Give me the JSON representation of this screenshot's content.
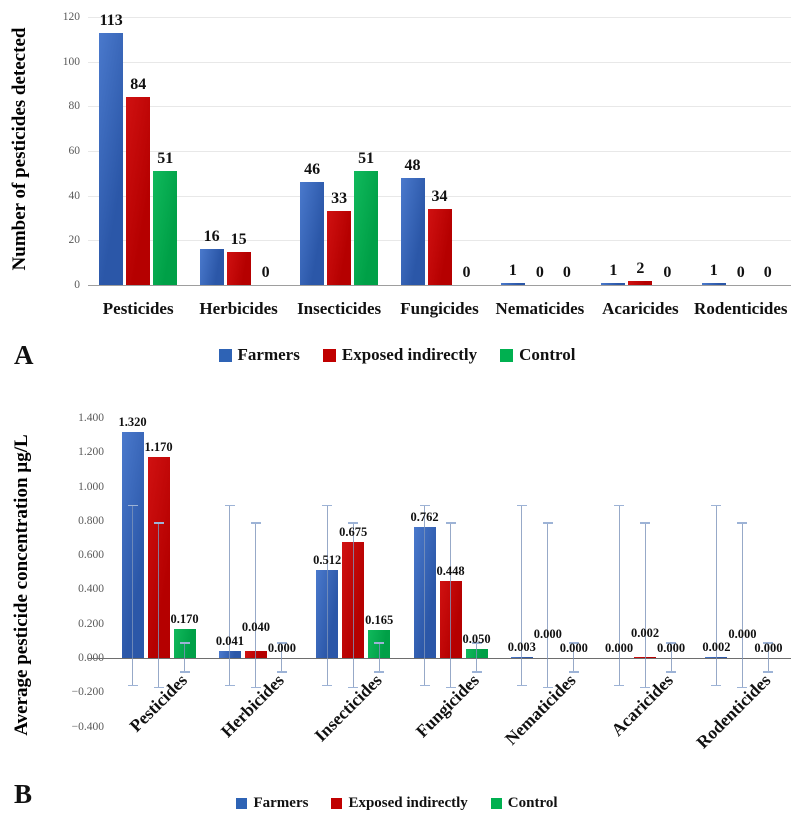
{
  "figure": {
    "panel_a_label": "A",
    "panel_b_label": "B"
  },
  "colors": {
    "farmers": "#2E63B5",
    "exposed_indirectly": "#C00000",
    "control": "#00B050",
    "error_bar": "#9DB3D6",
    "gridline": "#E8E8E8",
    "axis_line": "#9E9E9E",
    "tick_text": "#595959"
  },
  "legend": {
    "items": [
      {
        "label": "Farmers",
        "color": "#2E63B5"
      },
      {
        "label": "Exposed indirectly",
        "color": "#C00000"
      },
      {
        "label": "Control",
        "color": "#00B050"
      }
    ]
  },
  "chart_data": [
    {
      "type": "bar",
      "panel": "A",
      "title": "",
      "ylabel": "Number of pesticides detected",
      "xlabel": "",
      "categories": [
        "Pesticides",
        "Herbicides",
        "Insecticides",
        "Fungicides",
        "Nematicides",
        "Acaricides",
        "Rodenticides"
      ],
      "series": [
        {
          "name": "Farmers",
          "color": "#2E63B5",
          "values": [
            113,
            16,
            46,
            48,
            1,
            1,
            1
          ],
          "labels": [
            "113",
            "16",
            "46",
            "48",
            "1",
            "1",
            "1"
          ]
        },
        {
          "name": "Exposed indirectly",
          "color": "#C00000",
          "values": [
            84,
            15,
            33,
            34,
            0,
            2,
            0
          ],
          "labels": [
            "84",
            "15",
            "33",
            "34",
            "0",
            "2",
            "0"
          ]
        },
        {
          "name": "Control",
          "color": "#00B050",
          "values": [
            51,
            0,
            51,
            0,
            0,
            0,
            0
          ],
          "labels": [
            "51",
            "0",
            "51",
            "0",
            "0",
            "0",
            "0"
          ]
        }
      ],
      "ylim": [
        0,
        120
      ],
      "yticks": [
        {
          "value": 0,
          "label": "0"
        },
        {
          "value": 20,
          "label": "20"
        },
        {
          "value": 40,
          "label": "40"
        },
        {
          "value": 60,
          "label": "60"
        },
        {
          "value": 80,
          "label": "80"
        },
        {
          "value": 100,
          "label": "100"
        },
        {
          "value": 120,
          "label": "120"
        }
      ],
      "grid": true,
      "legend_entries": [
        "Farmers",
        "Exposed indirectly",
        "Control"
      ],
      "legend_position": "bottom"
    },
    {
      "type": "bar",
      "panel": "B",
      "title": "",
      "ylabel": "Average pesticide concentration µg/L",
      "xlabel": "",
      "categories": [
        "Pesticides",
        "Herbicides",
        "Insecticides",
        "Fungicides",
        "Nematicides",
        "Acaricides",
        "Rodenticides"
      ],
      "series": [
        {
          "name": "Farmers",
          "color": "#2E63B5",
          "values": [
            1.32,
            0.041,
            0.512,
            0.762,
            0.003,
            0.0,
            0.002
          ],
          "labels": [
            "1.320",
            "0.041",
            "0.512",
            "0.762",
            "0.003",
            "0.000",
            "0.002"
          ],
          "error_bar_top": 0.89,
          "error_bar_bottom": -0.16
        },
        {
          "name": "Exposed indirectly",
          "color": "#C00000",
          "values": [
            1.17,
            0.04,
            0.675,
            0.448,
            0.0,
            0.002,
            0.0
          ],
          "labels": [
            "1.170",
            "0.040",
            "0.675",
            "0.448",
            "0.000",
            "0.002",
            "0.000"
          ],
          "error_bar_top": 0.79,
          "error_bar_bottom": -0.17
        },
        {
          "name": "Control",
          "color": "#00B050",
          "values": [
            0.17,
            0.0,
            0.165,
            0.05,
            0.0,
            0.0,
            0.0
          ],
          "labels": [
            "0.170",
            "0.000",
            "0.165",
            "0.050",
            "0.000",
            "0.000",
            "0.000"
          ],
          "error_bar_top": 0.09,
          "error_bar_bottom": -0.08
        }
      ],
      "ylim": [
        -0.4,
        1.4
      ],
      "yticks": [
        {
          "value": 1.4,
          "label": "1.400"
        },
        {
          "value": 1.2,
          "label": "1.200"
        },
        {
          "value": 1.0,
          "label": "1.000"
        },
        {
          "value": 0.8,
          "label": "0.800"
        },
        {
          "value": 0.6,
          "label": "0.600"
        },
        {
          "value": 0.4,
          "label": "0.400"
        },
        {
          "value": 0.2,
          "label": "0.200"
        },
        {
          "value": 0.0,
          "label": "0.000"
        },
        {
          "value": -0.2,
          "label": "−0.200"
        },
        {
          "value": -0.4,
          "label": "−0.400"
        }
      ],
      "grid": false,
      "legend_entries": [
        "Farmers",
        "Exposed indirectly",
        "Control"
      ],
      "legend_position": "bottom",
      "value_label_format": "0.000"
    }
  ]
}
